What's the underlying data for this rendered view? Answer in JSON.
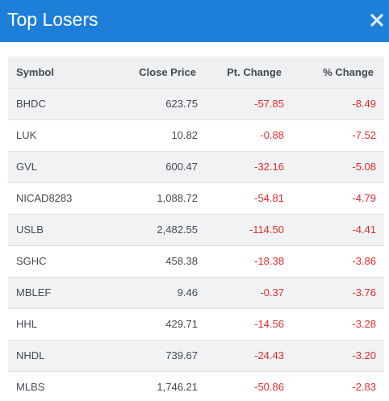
{
  "modal": {
    "title": "Top Losers",
    "close_icon": "close-icon"
  },
  "table": {
    "columns": [
      "Symbol",
      "Close Price",
      "Pt. Change",
      "% Change"
    ],
    "rows": [
      {
        "symbol": "BHDC",
        "close": "623.75",
        "pt": "-57.85",
        "pct": "-8.49"
      },
      {
        "symbol": "LUK",
        "close": "10.82",
        "pt": "-0.88",
        "pct": "-7.52"
      },
      {
        "symbol": "GVL",
        "close": "600.47",
        "pt": "-32.16",
        "pct": "-5.08"
      },
      {
        "symbol": "NICAD8283",
        "close": "1,088.72",
        "pt": "-54.81",
        "pct": "-4.79"
      },
      {
        "symbol": "USLB",
        "close": "2,482.55",
        "pt": "-114.50",
        "pct": "-4.41"
      },
      {
        "symbol": "SGHC",
        "close": "458.38",
        "pt": "-18.38",
        "pct": "-3.86"
      },
      {
        "symbol": "MBLEF",
        "close": "9.46",
        "pt": "-0.37",
        "pct": "-3.76"
      },
      {
        "symbol": "HHL",
        "close": "429.71",
        "pt": "-14.56",
        "pct": "-3.28"
      },
      {
        "symbol": "NHDL",
        "close": "739.67",
        "pt": "-24.43",
        "pct": "-3.20"
      },
      {
        "symbol": "MLBS",
        "close": "1,746.21",
        "pt": "-50.86",
        "pct": "-2.83"
      }
    ]
  },
  "colors": {
    "header_bg": "#1e7fd9",
    "negative": "#e02b2b"
  }
}
